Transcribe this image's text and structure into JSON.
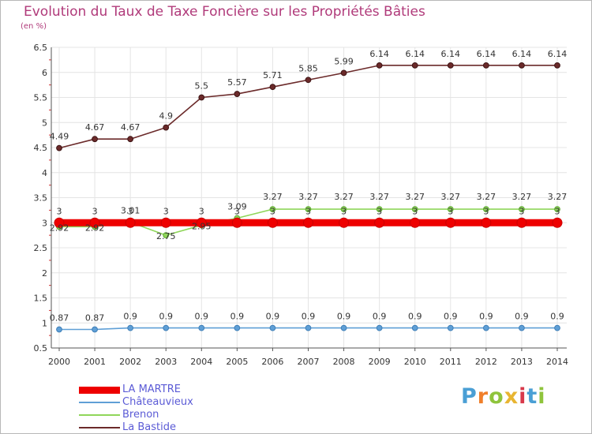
{
  "title": "Evolution du Taux de Taxe Foncière sur les Propriétés Bâties",
  "unit_label": "(en %)",
  "logo_text": "Proxiti",
  "logo_colors": [
    "#4a9fd5",
    "#f07f2a",
    "#8fc43c",
    "#e8b531",
    "#d8394b",
    "#4a9fd5",
    "#8fc43c"
  ],
  "chart_data": {
    "type": "line",
    "title": "Evolution du Taux de Taxe Foncière sur les Propriétés Bâties",
    "ylabel": "(en %)",
    "xlabel": "",
    "ylim": [
      0.5,
      6.5
    ],
    "grid": true,
    "legend_position": "bottom-left",
    "x": [
      "2000",
      "2001",
      "2002",
      "2003",
      "2004",
      "2005",
      "2006",
      "2007",
      "2008",
      "2009",
      "2010",
      "2011",
      "2012",
      "2013",
      "2014"
    ],
    "y_ticks": [
      "0.5",
      "1",
      "1.5",
      "2",
      "2.5",
      "3",
      "3.5",
      "4",
      "4.5",
      "5",
      "5.5",
      "6",
      "6.5"
    ],
    "series": [
      {
        "name": "LA MARTRE",
        "color": "#ee0000",
        "values": [
          3,
          3,
          3,
          3,
          3,
          3,
          3,
          3,
          3,
          3,
          3,
          3,
          3,
          3,
          3
        ],
        "labels": [
          "3",
          "3",
          "3",
          "3",
          "3",
          "3",
          "3",
          "3",
          "3",
          "3",
          "3",
          "3",
          "3",
          "3",
          "3"
        ]
      },
      {
        "name": "Châteauvieux",
        "color": "#5f9fd6",
        "values": [
          0.87,
          0.87,
          0.9,
          0.9,
          0.9,
          0.9,
          0.9,
          0.9,
          0.9,
          0.9,
          0.9,
          0.9,
          0.9,
          0.9,
          0.9
        ],
        "labels": [
          "0.87",
          "0.87",
          "0.9",
          "0.9",
          "0.9",
          "0.9",
          "0.9",
          "0.9",
          "0.9",
          "0.9",
          "0.9",
          "0.9",
          "0.9",
          "0.9",
          "0.9"
        ]
      },
      {
        "name": "Brenon",
        "color": "#8fd65a",
        "values": [
          2.92,
          2.92,
          3.01,
          2.75,
          2.95,
          3.09,
          3.27,
          3.27,
          3.27,
          3.27,
          3.27,
          3.27,
          3.27,
          3.27,
          3.27
        ],
        "labels": [
          "2.92",
          "2.92",
          "3.01",
          "2.75",
          "2.95",
          "3.09",
          "3.27",
          "3.27",
          "3.27",
          "3.27",
          "3.27",
          "3.27",
          "3.27",
          "3.27",
          "3.27"
        ]
      },
      {
        "name": "La Bastide",
        "color": "#6b2a2a",
        "values": [
          4.49,
          4.67,
          4.67,
          4.9,
          5.5,
          5.57,
          5.71,
          5.85,
          5.99,
          6.14,
          6.14,
          6.14,
          6.14,
          6.14,
          6.14
        ],
        "labels": [
          "4.49",
          "4.67",
          "4.67",
          "4.9",
          "5.5",
          "5.57",
          "5.71",
          "5.85",
          "5.99",
          "6.14",
          "6.14",
          "6.14",
          "6.14",
          "6.14",
          "6.14"
        ]
      }
    ]
  }
}
